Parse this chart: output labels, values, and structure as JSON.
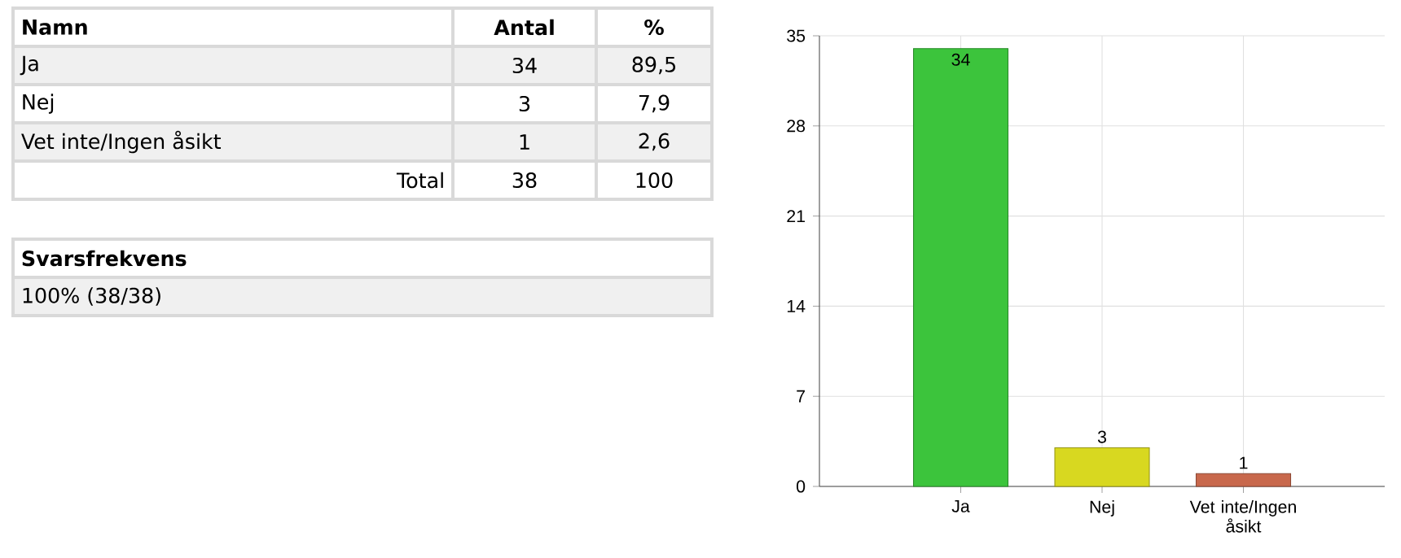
{
  "chart_data": {
    "type": "bar",
    "categories": [
      "Ja",
      "Nej",
      "Vet inte/Ingen åsikt"
    ],
    "values": [
      34,
      3,
      1
    ],
    "colors": [
      "#3cc43c",
      "#d8d820",
      "#c8684c"
    ],
    "ylim": [
      0,
      35
    ],
    "yticks": [
      0,
      7,
      14,
      21,
      28,
      35
    ],
    "grid": true,
    "data_labels": true,
    "annotations": [
      "Namn",
      "Antal",
      "%",
      "Ja",
      "34",
      "89,5",
      "Nej",
      "3",
      "7,9",
      "Vet inte/Ingen åsikt",
      "1",
      "2,6",
      "Total",
      "38",
      "100",
      "Svarsfrekvens",
      "100% (38/38)"
    ]
  }
}
